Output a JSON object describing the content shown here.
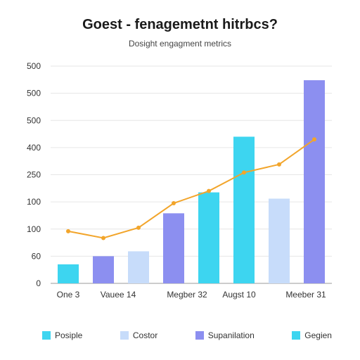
{
  "chart_data": {
    "type": "bar",
    "title": "Goest - fenagemetnt hitrbcs?",
    "subtitle": "Dosight engagment metrics",
    "y_tick_labels": [
      "0",
      "60",
      "100",
      "100",
      "250",
      "400",
      "500",
      "500",
      "500"
    ],
    "x_tick_labels": [
      "One 3",
      "Vauee 14",
      "Megber 32",
      "Augst 10",
      "Meeber 31"
    ],
    "ylim": [
      0,
      800
    ],
    "grid": true,
    "bars": [
      {
        "series": "Posiple",
        "value": 70,
        "color": "#3dd5f0"
      },
      {
        "series": "Supanilation",
        "value": 100,
        "color": "#8c8ff0"
      },
      {
        "series": "Costor",
        "value": 118,
        "color": "#c7dcfa"
      },
      {
        "series": "Supanilation",
        "value": 258,
        "color": "#8c8ff0"
      },
      {
        "series": "Gegien",
        "value": 335,
        "color": "#3dd5f0"
      },
      {
        "series": "Gegien",
        "value": 540,
        "color": "#3dd5f0"
      },
      {
        "series": "Costor",
        "value": 312,
        "color": "#c7dcfa"
      },
      {
        "series": "Supanilation",
        "value": 748,
        "color": "#8c8ff0"
      }
    ],
    "line": {
      "color": "#f2a52b",
      "x": [
        1,
        2,
        3,
        4,
        5,
        6,
        7,
        8
      ],
      "y": [
        192,
        167,
        205,
        295,
        340,
        408,
        438,
        530
      ]
    },
    "legend_position": "bottom",
    "legend": [
      {
        "label": "Posiple",
        "color": "#3dd5f0"
      },
      {
        "label": "Costor",
        "color": "#c7dcfa"
      },
      {
        "label": "Supanilation",
        "color": "#8c8ff0"
      },
      {
        "label": "Gegien",
        "color": "#3dd5f0"
      }
    ]
  }
}
